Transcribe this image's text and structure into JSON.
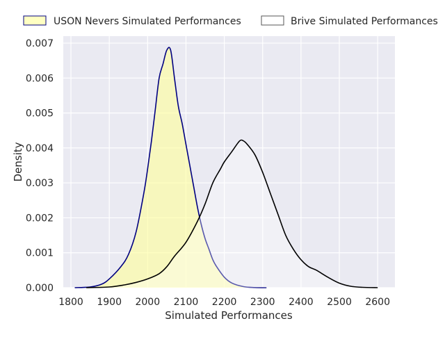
{
  "chart_data": {
    "type": "area",
    "xlabel": "Simulated Performances",
    "ylabel": "Density",
    "xlim": [
      1780,
      2645
    ],
    "ylim": [
      0,
      0.0072
    ],
    "x_ticks": [
      1800,
      1900,
      2000,
      2100,
      2200,
      2300,
      2400,
      2500,
      2600
    ],
    "x_tick_labels": [
      "1800",
      "1900",
      "2000",
      "2100",
      "2200",
      "2300",
      "2400",
      "2500",
      "2600"
    ],
    "y_ticks": [
      0,
      0.001,
      0.002,
      0.003,
      0.004,
      0.005,
      0.006,
      0.007
    ],
    "y_tick_labels": [
      "0.000",
      "0.001",
      "0.002",
      "0.003",
      "0.004",
      "0.005",
      "0.006",
      "0.007"
    ],
    "grid": true,
    "legend_position": "top, outside the plot",
    "background_color": "#eaeaf2",
    "series": [
      {
        "name": "USON Nevers Simulated Performances",
        "fill_color": "#ffff99",
        "fill_opacity": 0.6,
        "line_color": "#000080",
        "x": [
          1810,
          1850,
          1880,
          1900,
          1930,
          1950,
          1970,
          1990,
          2000,
          2010,
          2020,
          2030,
          2040,
          2050,
          2060,
          2070,
          2080,
          2090,
          2100,
          2110,
          2120,
          2130,
          2140,
          2150,
          2160,
          2170,
          2180,
          2200,
          2220,
          2250,
          2280,
          2310
        ],
        "values": [
          0.0,
          2e-05,
          0.0001,
          0.00025,
          0.0006,
          0.00095,
          0.0016,
          0.0027,
          0.0034,
          0.0042,
          0.0051,
          0.006,
          0.0064,
          0.0068,
          0.0068,
          0.006,
          0.0052,
          0.0047,
          0.0041,
          0.0035,
          0.0029,
          0.0023,
          0.0018,
          0.0014,
          0.0011,
          0.0008,
          0.0006,
          0.0003,
          0.00013,
          3e-05,
          5e-06,
          0.0
        ]
      },
      {
        "name": "Brive Simulated Performances",
        "fill_color": "#ffffff",
        "fill_opacity": 0.35,
        "line_color": "#000000",
        "x": [
          1840,
          1900,
          1940,
          1970,
          2000,
          2030,
          2050,
          2070,
          2100,
          2130,
          2150,
          2170,
          2190,
          2200,
          2220,
          2240,
          2250,
          2260,
          2280,
          2300,
          2320,
          2340,
          2360,
          2380,
          2400,
          2420,
          2440,
          2470,
          2500,
          2530,
          2560,
          2600
        ],
        "values": [
          0.0,
          2e-05,
          8e-05,
          0.00015,
          0.00025,
          0.0004,
          0.0006,
          0.0009,
          0.0013,
          0.0019,
          0.0024,
          0.003,
          0.0034,
          0.0036,
          0.0039,
          0.0042,
          0.0042,
          0.0041,
          0.0038,
          0.0033,
          0.0027,
          0.0021,
          0.0015,
          0.0011,
          0.0008,
          0.0006,
          0.0005,
          0.0003,
          0.00013,
          4e-05,
          1e-05,
          0.0
        ]
      }
    ]
  }
}
